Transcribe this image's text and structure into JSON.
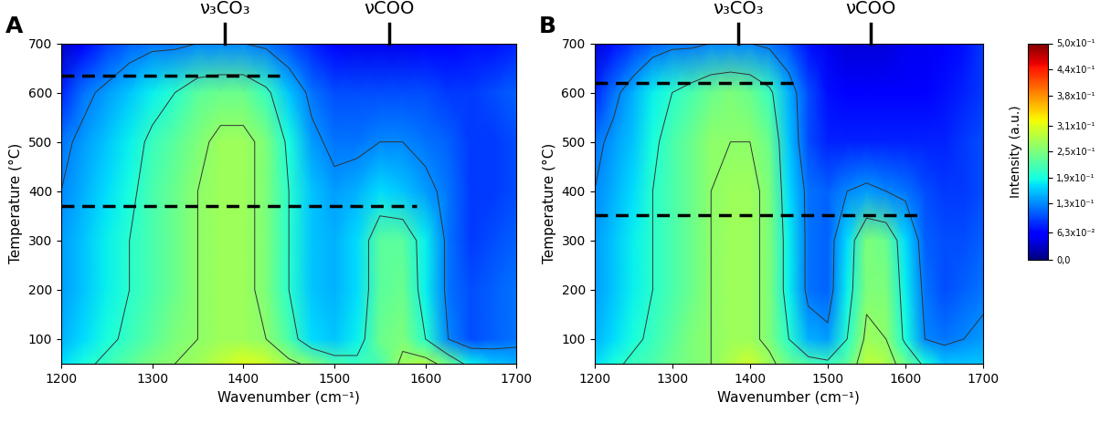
{
  "chart_data": [
    {
      "type": "heatmap",
      "panel_label": "A",
      "xlabel": "Wavenumber (cm⁻¹)",
      "ylabel": "Temperature (°C)",
      "x": [
        1200,
        1225,
        1250,
        1275,
        1300,
        1325,
        1350,
        1375,
        1400,
        1425,
        1450,
        1475,
        1500,
        1525,
        1550,
        1575,
        1600,
        1625,
        1650,
        1675,
        1700
      ],
      "y": [
        50,
        100,
        200,
        300,
        400,
        500,
        600,
        700
      ],
      "values": [
        [
          0.17,
          0.19,
          0.21,
          0.23,
          0.25,
          0.26,
          0.27,
          0.29,
          0.31,
          0.3,
          0.27,
          0.25,
          0.22,
          0.21,
          0.22,
          0.27,
          0.28,
          0.24,
          0.18,
          0.16,
          0.15
        ],
        [
          0.15,
          0.17,
          0.19,
          0.21,
          0.23,
          0.25,
          0.26,
          0.27,
          0.27,
          0.26,
          0.22,
          0.17,
          0.16,
          0.18,
          0.24,
          0.25,
          0.2,
          0.13,
          0.1,
          0.11,
          0.12
        ],
        [
          0.14,
          0.16,
          0.18,
          0.2,
          0.22,
          0.24,
          0.26,
          0.27,
          0.27,
          0.25,
          0.2,
          0.16,
          0.15,
          0.17,
          0.23,
          0.24,
          0.18,
          0.12,
          0.1,
          0.11,
          0.12
        ],
        [
          0.14,
          0.16,
          0.18,
          0.2,
          0.22,
          0.24,
          0.26,
          0.27,
          0.27,
          0.25,
          0.2,
          0.16,
          0.15,
          0.17,
          0.23,
          0.23,
          0.18,
          0.12,
          0.09,
          0.1,
          0.11
        ],
        [
          0.13,
          0.15,
          0.17,
          0.19,
          0.22,
          0.24,
          0.26,
          0.27,
          0.27,
          0.25,
          0.2,
          0.16,
          0.14,
          0.15,
          0.17,
          0.16,
          0.14,
          0.12,
          0.09,
          0.09,
          0.1
        ],
        [
          0.12,
          0.14,
          0.16,
          0.18,
          0.21,
          0.23,
          0.25,
          0.27,
          0.27,
          0.25,
          0.19,
          0.14,
          0.12,
          0.12,
          0.13,
          0.13,
          0.12,
          0.11,
          0.09,
          0.09,
          0.1
        ],
        [
          0.08,
          0.12,
          0.14,
          0.16,
          0.18,
          0.2,
          0.23,
          0.24,
          0.24,
          0.21,
          0.16,
          0.12,
          0.1,
          0.1,
          0.1,
          0.1,
          0.1,
          0.09,
          0.09,
          0.1,
          0.11
        ],
        [
          0.03,
          0.06,
          0.09,
          0.11,
          0.12,
          0.12,
          0.13,
          0.13,
          0.13,
          0.12,
          0.1,
          0.08,
          0.06,
          0.05,
          0.05,
          0.05,
          0.06,
          0.06,
          0.07,
          0.07,
          0.08
        ]
      ],
      "contour_levels": [
        0.13,
        0.2,
        0.26
      ],
      "xlim": [
        1200,
        1700
      ],
      "xticks": [
        1200,
        1300,
        1400,
        1500,
        1600,
        1700
      ],
      "ylim": [
        50,
        700
      ],
      "yticks": [
        100,
        200,
        300,
        400,
        500,
        600,
        700
      ],
      "peak_labels": [
        {
          "x": 1380,
          "label": "ν₃CO₃"
        },
        {
          "x": 1560,
          "label": "νCOO"
        }
      ],
      "dashed_lines": [
        {
          "y": 635,
          "x": [
            1200,
            1440
          ]
        },
        {
          "y": 370,
          "x": [
            1200,
            1590
          ]
        }
      ]
    },
    {
      "type": "heatmap",
      "panel_label": "B",
      "xlabel": "Wavenumber (cm⁻¹)",
      "ylabel": "Temperature (°C)",
      "x": [
        1200,
        1225,
        1250,
        1275,
        1300,
        1325,
        1350,
        1375,
        1400,
        1425,
        1450,
        1475,
        1500,
        1525,
        1550,
        1575,
        1600,
        1625,
        1650,
        1675,
        1700
      ],
      "y": [
        50,
        100,
        200,
        300,
        400,
        500,
        600,
        700
      ],
      "values": [
        [
          0.17,
          0.19,
          0.21,
          0.22,
          0.24,
          0.25,
          0.26,
          0.28,
          0.3,
          0.27,
          0.24,
          0.22,
          0.21,
          0.23,
          0.29,
          0.28,
          0.24,
          0.19,
          0.16,
          0.16,
          0.16
        ],
        [
          0.15,
          0.17,
          0.19,
          0.21,
          0.23,
          0.25,
          0.26,
          0.27,
          0.27,
          0.25,
          0.2,
          0.15,
          0.14,
          0.2,
          0.27,
          0.26,
          0.19,
          0.13,
          0.12,
          0.13,
          0.14
        ],
        [
          0.14,
          0.16,
          0.18,
          0.2,
          0.22,
          0.24,
          0.26,
          0.27,
          0.27,
          0.25,
          0.18,
          0.12,
          0.11,
          0.18,
          0.25,
          0.25,
          0.18,
          0.12,
          0.1,
          0.11,
          0.12
        ],
        [
          0.14,
          0.16,
          0.18,
          0.2,
          0.22,
          0.24,
          0.26,
          0.27,
          0.27,
          0.25,
          0.18,
          0.12,
          0.11,
          0.17,
          0.25,
          0.24,
          0.17,
          0.11,
          0.1,
          0.1,
          0.11
        ],
        [
          0.13,
          0.15,
          0.17,
          0.2,
          0.22,
          0.24,
          0.26,
          0.27,
          0.27,
          0.25,
          0.17,
          0.12,
          0.11,
          0.13,
          0.14,
          0.13,
          0.12,
          0.1,
          0.09,
          0.09,
          0.1
        ],
        [
          0.12,
          0.14,
          0.16,
          0.19,
          0.22,
          0.24,
          0.26,
          0.26,
          0.26,
          0.24,
          0.16,
          0.1,
          0.08,
          0.08,
          0.08,
          0.08,
          0.08,
          0.08,
          0.08,
          0.09,
          0.1
        ],
        [
          0.08,
          0.12,
          0.15,
          0.18,
          0.2,
          0.22,
          0.24,
          0.25,
          0.24,
          0.21,
          0.15,
          0.1,
          0.07,
          0.06,
          0.06,
          0.06,
          0.06,
          0.06,
          0.07,
          0.08,
          0.09
        ],
        [
          0.04,
          0.07,
          0.09,
          0.11,
          0.12,
          0.12,
          0.13,
          0.13,
          0.13,
          0.12,
          0.1,
          0.07,
          0.05,
          0.04,
          0.04,
          0.04,
          0.05,
          0.05,
          0.06,
          0.07,
          0.09
        ]
      ],
      "contour_levels": [
        0.13,
        0.2,
        0.26
      ],
      "xlim": [
        1200,
        1700
      ],
      "xticks": [
        1200,
        1300,
        1400,
        1500,
        1600,
        1700
      ],
      "ylim": [
        50,
        700
      ],
      "yticks": [
        100,
        200,
        300,
        400,
        500,
        600,
        700
      ],
      "peak_labels": [
        {
          "x": 1385,
          "label": "ν₃CO₃"
        },
        {
          "x": 1555,
          "label": "νCOO"
        }
      ],
      "dashed_lines": [
        {
          "y": 620,
          "x": [
            1200,
            1455
          ]
        },
        {
          "y": 352,
          "x": [
            1200,
            1625
          ]
        }
      ]
    }
  ],
  "colorbar": {
    "label": "Intensity (a.u.)",
    "range": [
      0,
      0.5
    ],
    "ticks": [
      {
        "value": 0,
        "label": "0,0"
      },
      {
        "value": 0.063,
        "label": "6,3x10⁻²"
      },
      {
        "value": 0.13,
        "label": "1,3x10⁻¹"
      },
      {
        "value": 0.19,
        "label": "1,9x10⁻¹"
      },
      {
        "value": 0.25,
        "label": "2,5x10⁻¹"
      },
      {
        "value": 0.31,
        "label": "3,1x10⁻¹"
      },
      {
        "value": 0.38,
        "label": "3,8x10⁻¹"
      },
      {
        "value": 0.44,
        "label": "4,4x10⁻¹"
      },
      {
        "value": 0.5,
        "label": "5,0x10⁻¹"
      }
    ]
  }
}
